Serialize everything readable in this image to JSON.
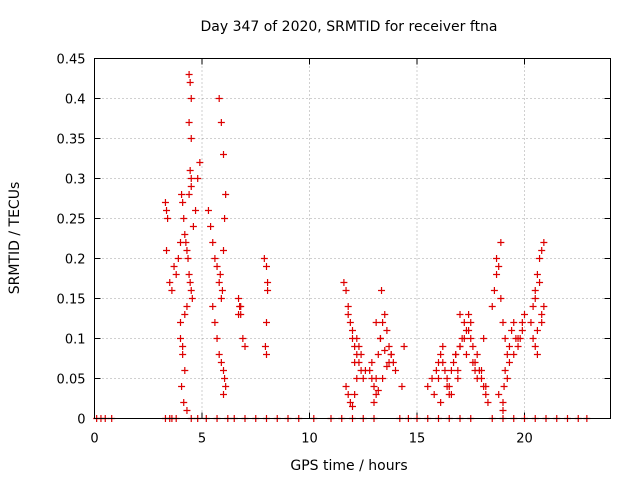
{
  "chart_data": {
    "type": "scatter",
    "title": "Day 347 of 2020, SRMTID for receiver ftna",
    "xlabel": "GPS time / hours",
    "ylabel": "SRMTID / TECUs",
    "xlim": [
      0,
      24
    ],
    "ylim": [
      0,
      0.45
    ],
    "x_ticks": [
      0,
      5,
      10,
      15,
      20
    ],
    "y_ticks": [
      0,
      0.05,
      0.1,
      0.15,
      0.2,
      0.25,
      0.3,
      0.35,
      0.4,
      0.45
    ],
    "x_tick_labels": [
      "0",
      "5",
      "10",
      "15",
      "20"
    ],
    "y_tick_labels": [
      "0",
      "0.05",
      "0.1",
      "0.15",
      "0.2",
      "0.25",
      "0.3",
      "0.35",
      "0.4",
      "0.45"
    ],
    "grid": true,
    "marker": "+",
    "marker_color": "#dd0000",
    "series": [
      {
        "name": "ftna",
        "x": [
          0.1,
          0.3,
          0.5,
          0.8,
          3.3,
          3.5,
          3.6,
          3.8,
          4.5,
          4.8,
          5.2,
          5.7,
          6.2,
          6.5,
          7.0,
          7.5,
          8.0,
          8.5,
          9.0,
          9.5,
          10.2,
          11.0,
          11.5,
          12.0,
          12.5,
          13.0,
          14.2,
          14.6,
          15.0,
          15.5,
          16.0,
          16.5,
          17.0,
          17.5,
          18.5,
          19.0,
          19.5,
          20.0,
          20.5,
          21.0,
          21.5,
          22.0,
          22.5,
          22.9,
          3.3,
          3.35,
          3.4,
          3.35,
          3.5,
          3.6,
          3.7,
          3.8,
          3.9,
          4.0,
          4.05,
          4.1,
          4.15,
          4.2,
          4.25,
          4.3,
          4.35,
          4.4,
          4.45,
          4.5,
          4.55,
          4.6,
          4.7,
          4.8,
          4.9,
          4.0,
          4.1,
          4.2,
          4.05,
          4.15,
          4.3,
          4.0,
          4.1,
          4.2,
          4.3,
          4.4,
          4.45,
          4.5,
          4.4,
          4.5,
          4.45,
          4.5,
          4.4,
          4.5,
          5.3,
          5.4,
          5.5,
          5.6,
          5.7,
          5.8,
          5.9,
          5.5,
          5.6,
          5.7,
          5.8,
          5.9,
          6.0,
          6.05,
          6.1,
          6.0,
          5.8,
          5.9,
          6.0,
          6.1,
          6.05,
          6.0,
          5.85,
          5.95,
          6.7,
          6.75,
          6.8,
          6.9,
          7.0,
          6.7,
          6.8,
          7.9,
          8.0,
          8.05,
          8.0,
          7.95,
          8.0,
          8.05,
          11.6,
          11.7,
          11.8,
          11.9,
          12.0,
          12.1,
          12.2,
          12.3,
          12.4,
          12.5,
          11.7,
          11.8,
          11.9,
          12.0,
          12.1,
          12.2,
          11.8,
          12.0,
          12.2,
          12.4,
          12.6,
          12.1,
          12.3,
          12.8,
          12.9,
          13.0,
          13.1,
          13.2,
          13.3,
          13.4,
          13.5,
          13.6,
          13.7,
          13.8,
          13.9,
          14.0,
          13.0,
          13.2,
          13.4,
          13.6,
          13.8,
          13.1,
          13.3,
          13.5,
          13.7,
          12.9,
          13.1,
          13.35,
          14.3,
          14.4,
          15.5,
          15.7,
          15.9,
          16.0,
          16.1,
          16.2,
          16.3,
          16.4,
          16.5,
          16.6,
          16.7,
          16.8,
          16.9,
          17.0,
          17.1,
          17.2,
          17.3,
          17.4,
          17.5,
          17.6,
          17.7,
          17.8,
          17.9,
          18.0,
          18.1,
          18.2,
          18.3,
          15.8,
          16.0,
          16.2,
          16.4,
          16.6,
          16.8,
          17.0,
          17.2,
          17.4,
          17.6,
          17.8,
          18.0,
          18.2,
          16.1,
          16.5,
          16.9,
          17.3,
          17.7,
          18.1,
          17.0,
          17.5,
          18.5,
          18.6,
          18.7,
          18.8,
          18.9,
          19.0,
          19.1,
          19.2,
          19.3,
          19.4,
          19.5,
          19.6,
          19.7,
          19.8,
          19.9,
          20.0,
          18.7,
          18.9,
          19.1,
          19.3,
          19.5,
          19.7,
          19.9,
          18.8,
          19.0,
          19.2,
          19.0,
          19.05,
          20.3,
          20.4,
          20.5,
          20.6,
          20.7,
          20.8,
          20.9,
          20.4,
          20.6,
          20.8,
          20.5,
          20.7,
          20.5,
          20.6,
          20.8,
          20.9
        ],
        "y": [
          0,
          0,
          0,
          0,
          0,
          0,
          0,
          0,
          0,
          0,
          0,
          0,
          0,
          0,
          0,
          0,
          0,
          0,
          0,
          0,
          0,
          0,
          0,
          0,
          0,
          0,
          0,
          0,
          0,
          0,
          0,
          0,
          0,
          0,
          0,
          0,
          0,
          0,
          0,
          0,
          0,
          0,
          0,
          0,
          0.27,
          0.26,
          0.25,
          0.21,
          0.17,
          0.16,
          0.19,
          0.18,
          0.2,
          0.22,
          0.28,
          0.27,
          0.25,
          0.23,
          0.22,
          0.21,
          0.2,
          0.18,
          0.17,
          0.16,
          0.15,
          0.24,
          0.26,
          0.3,
          0.32,
          0.1,
          0.08,
          0.06,
          0.04,
          0.02,
          0.01,
          0.12,
          0.09,
          0.13,
          0.14,
          0.43,
          0.42,
          0.4,
          0.37,
          0.35,
          0.31,
          0.3,
          0.28,
          0.29,
          0.26,
          0.24,
          0.22,
          0.2,
          0.19,
          0.17,
          0.15,
          0.14,
          0.12,
          0.1,
          0.08,
          0.07,
          0.06,
          0.05,
          0.04,
          0.03,
          0.4,
          0.37,
          0.33,
          0.28,
          0.25,
          0.21,
          0.18,
          0.16,
          0.15,
          0.14,
          0.13,
          0.1,
          0.09,
          0.13,
          0.14,
          0.2,
          0.19,
          0.17,
          0.12,
          0.09,
          0.08,
          0.16,
          0.17,
          0.16,
          0.14,
          0.12,
          0.1,
          0.09,
          0.08,
          0.07,
          0.06,
          0.05,
          0.04,
          0.03,
          0.02,
          0.015,
          0.03,
          0.05,
          0.13,
          0.11,
          0.1,
          0.08,
          0.06,
          0.07,
          0.09,
          0.06,
          0.05,
          0.04,
          0.03,
          0.08,
          0.1,
          0.12,
          0.13,
          0.11,
          0.09,
          0.08,
          0.07,
          0.06,
          0.02,
          0.035,
          0.05,
          0.065,
          0.08,
          0.12,
          0.1,
          0.085,
          0.07,
          0.07,
          0.05,
          0.16,
          0.04,
          0.09,
          0.04,
          0.05,
          0.06,
          0.07,
          0.08,
          0.09,
          0.06,
          0.05,
          0.04,
          0.03,
          0.07,
          0.08,
          0.06,
          0.09,
          0.1,
          0.12,
          0.11,
          0.13,
          0.1,
          0.09,
          0.07,
          0.08,
          0.06,
          0.05,
          0.04,
          0.03,
          0.02,
          0.03,
          0.05,
          0.07,
          0.04,
          0.06,
          0.08,
          0.09,
          0.1,
          0.11,
          0.07,
          0.05,
          0.06,
          0.04,
          0.02,
          0.03,
          0.05,
          0.08,
          0.06,
          0.1,
          0.13,
          0.12,
          0.14,
          0.16,
          0.18,
          0.19,
          0.15,
          0.12,
          0.1,
          0.08,
          0.09,
          0.11,
          0.12,
          0.1,
          0.09,
          0.1,
          0.11,
          0.13,
          0.2,
          0.22,
          0.06,
          0.07,
          0.08,
          0.1,
          0.12,
          0.03,
          0.02,
          0.05,
          0.01,
          0.04,
          0.12,
          0.14,
          0.16,
          0.18,
          0.2,
          0.21,
          0.22,
          0.1,
          0.11,
          0.13,
          0.15,
          0.17,
          0.09,
          0.08,
          0.12,
          0.14
        ]
      }
    ]
  }
}
